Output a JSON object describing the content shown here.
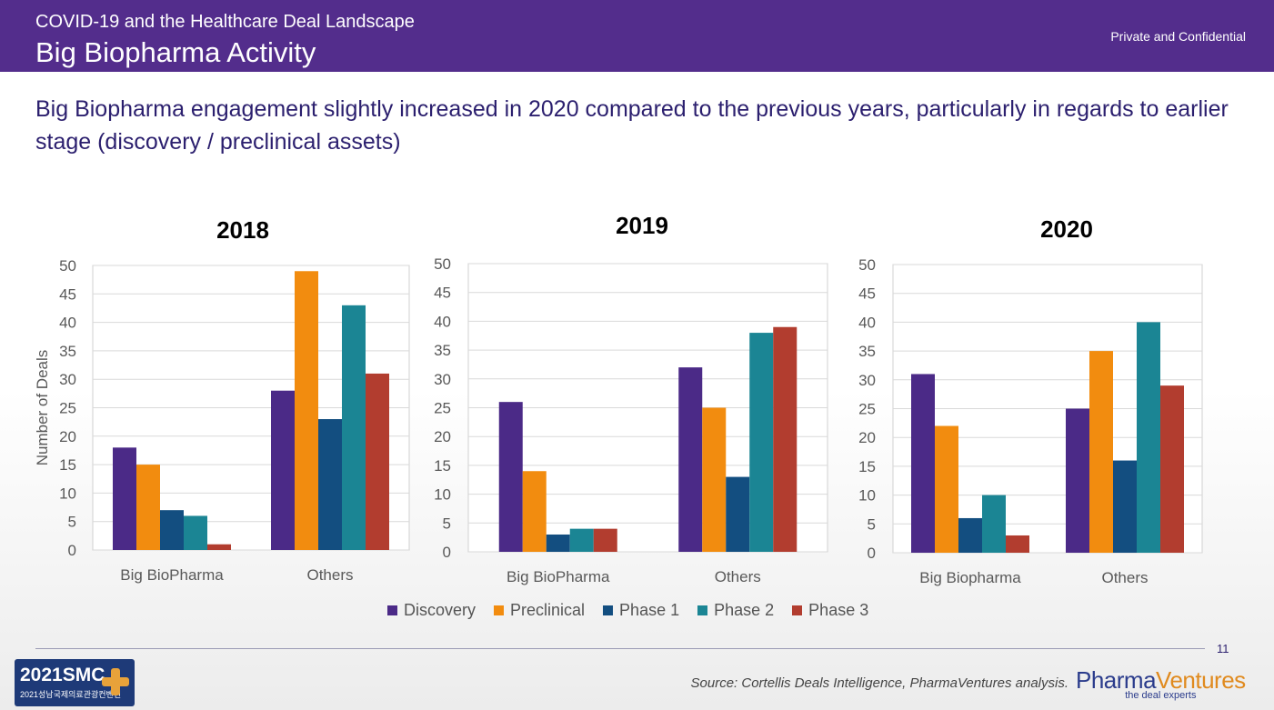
{
  "header": {
    "subtitle": "COVID-19 and the Healthcare Deal Landscape",
    "title": "Big Biopharma Activity",
    "confidential": "Private and Confidential"
  },
  "headline": "Big Biopharma engagement slightly increased in 2020 compared to the previous years, particularly in regards to earlier stage (discovery / preclinical assets)",
  "colors": {
    "Discovery": "#4b2a87",
    "Preclinical": "#f28c0f",
    "Phase 1": "#134e80",
    "Phase 2": "#1b8594",
    "Phase 3": "#b23d2f",
    "header_bg": "#532d8c"
  },
  "chart_data": [
    {
      "type": "bar",
      "title": "2018",
      "ylabel": "Number of Deals",
      "ylim": [
        0,
        50
      ],
      "yticks": [
        "0",
        "5",
        "10",
        "15",
        "20",
        "25",
        "30",
        "35",
        "40",
        "45",
        "50"
      ],
      "categories": [
        "Big BioPharma",
        "Others"
      ],
      "series": [
        {
          "name": "Discovery",
          "values": [
            18,
            28
          ]
        },
        {
          "name": "Preclinical",
          "values": [
            15,
            49
          ]
        },
        {
          "name": "Phase 1",
          "values": [
            7,
            23
          ]
        },
        {
          "name": "Phase 2",
          "values": [
            6,
            43
          ]
        },
        {
          "name": "Phase 3",
          "values": [
            1,
            31
          ]
        }
      ],
      "grid": true
    },
    {
      "type": "bar",
      "title": "2019",
      "ylabel": "",
      "ylim": [
        0,
        50
      ],
      "yticks": [
        "0",
        "5",
        "10",
        "15",
        "20",
        "25",
        "30",
        "35",
        "40",
        "45",
        "50"
      ],
      "categories": [
        "Big BioPharma",
        "Others"
      ],
      "series": [
        {
          "name": "Discovery",
          "values": [
            26,
            32
          ]
        },
        {
          "name": "Preclinical",
          "values": [
            14,
            25
          ]
        },
        {
          "name": "Phase 1",
          "values": [
            3,
            13
          ]
        },
        {
          "name": "Phase 2",
          "values": [
            4,
            38
          ]
        },
        {
          "name": "Phase 3",
          "values": [
            4,
            39
          ]
        }
      ],
      "grid": true
    },
    {
      "type": "bar",
      "title": "2020",
      "ylabel": "",
      "ylim": [
        0,
        50
      ],
      "yticks": [
        "0",
        "5",
        "10",
        "15",
        "20",
        "25",
        "30",
        "35",
        "40",
        "45",
        "50"
      ],
      "categories": [
        "Big Biopharma",
        "Others"
      ],
      "series": [
        {
          "name": "Discovery",
          "values": [
            31,
            25
          ]
        },
        {
          "name": "Preclinical",
          "values": [
            22,
            35
          ]
        },
        {
          "name": "Phase 1",
          "values": [
            6,
            16
          ]
        },
        {
          "name": "Phase 2",
          "values": [
            10,
            40
          ]
        },
        {
          "name": "Phase 3",
          "values": [
            3,
            29
          ]
        }
      ],
      "grid": true
    }
  ],
  "legend": [
    "Discovery",
    "Preclinical",
    "Phase 1",
    "Phase 2",
    "Phase 3"
  ],
  "footer": {
    "page_number": "11",
    "source": "Source: Cortellis Deals Intelligence, PharmaVentures analysis.",
    "smc_logo_text": "2021SMC",
    "smc_logo_sub": "2021성남국제의료관광컨벤션",
    "pv_logo_name_a": "Pharma",
    "pv_logo_name_b": "Ventures",
    "pv_logo_tag": "the deal experts"
  }
}
